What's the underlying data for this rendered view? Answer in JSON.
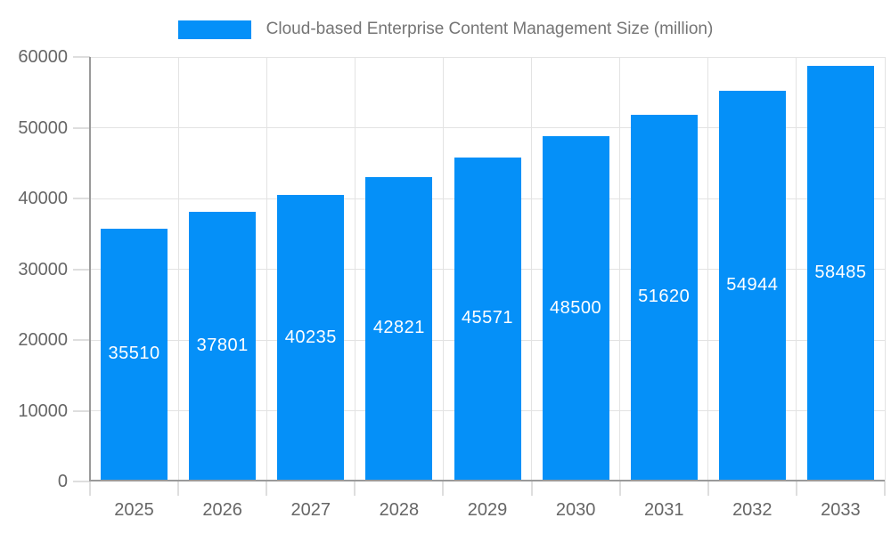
{
  "legend": {
    "series_label": "Cloud-based Enterprise Content Management Size (million)"
  },
  "colors": {
    "background": "#ffffff",
    "bar": "#0590f8",
    "axis_line": "#9a9a9a",
    "gridline": "#e3e3e3",
    "tick": "#dedede",
    "axis_label_text": "#666666",
    "legend_text": "#757575",
    "bar_value_text": "#ffffff"
  },
  "chart_data": {
    "type": "bar",
    "title": "Cloud-based Enterprise Content Management Size (million)",
    "categories": [
      "2025",
      "2026",
      "2027",
      "2028",
      "2029",
      "2030",
      "2031",
      "2032",
      "2033"
    ],
    "series": [
      {
        "name": "Cloud-based Enterprise Content Management Size (million)",
        "values": [
          35510,
          37801,
          40235,
          42821,
          45571,
          48500,
          51620,
          54944,
          58485
        ]
      }
    ],
    "xlabel": "",
    "ylabel": "",
    "ylim": [
      0,
      60000
    ],
    "ytick_step": 10000,
    "yticks": [
      0,
      10000,
      20000,
      30000,
      40000,
      50000,
      60000
    ],
    "grid": true,
    "legend_position": "top",
    "value_label_position": "inside-center"
  }
}
